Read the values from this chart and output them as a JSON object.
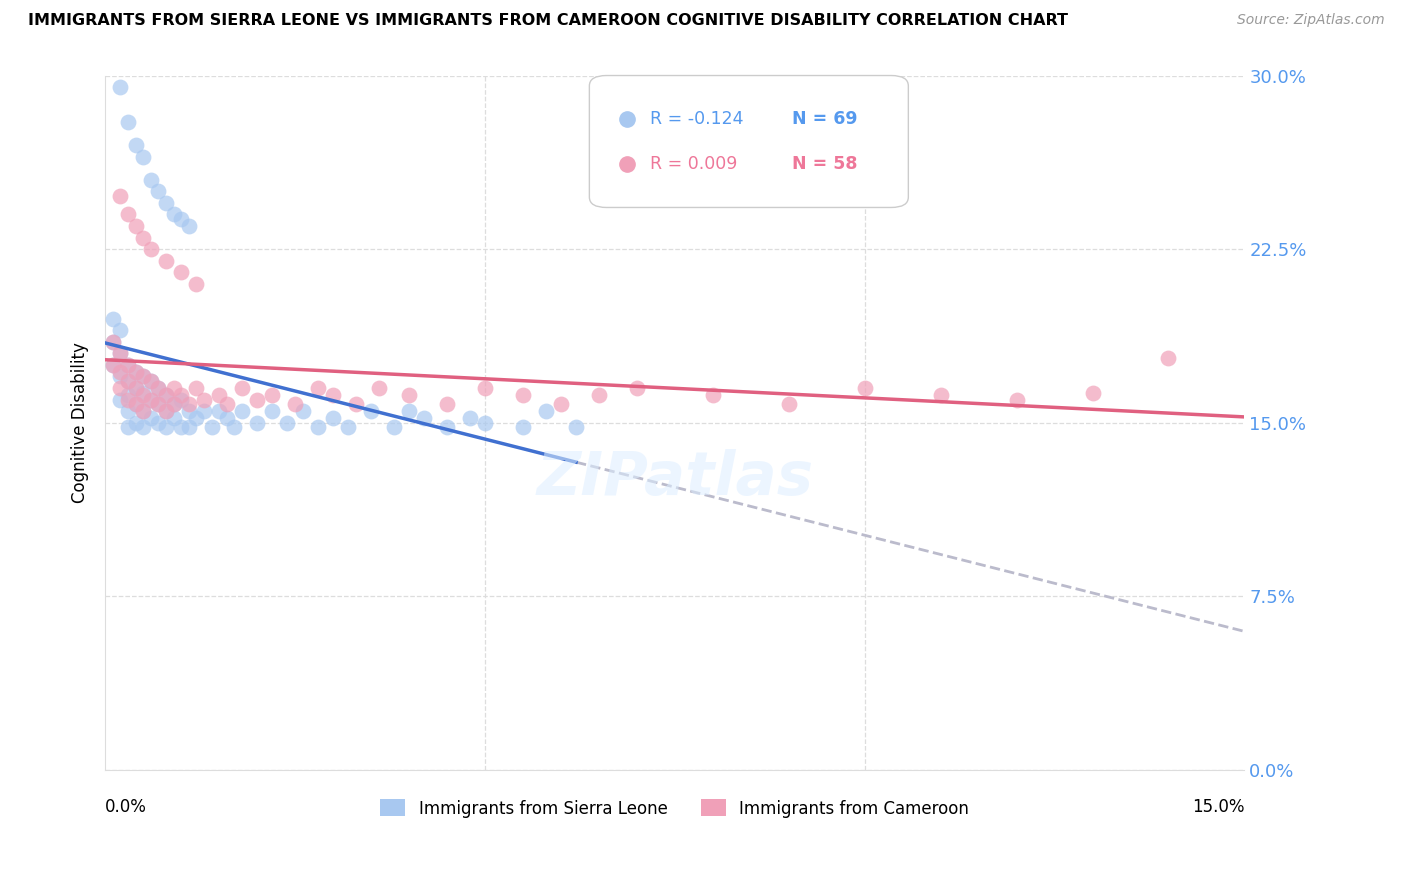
{
  "title": "IMMIGRANTS FROM SIERRA LEONE VS IMMIGRANTS FROM CAMEROON COGNITIVE DISABILITY CORRELATION CHART",
  "source": "Source: ZipAtlas.com",
  "ylabel": "Cognitive Disability",
  "legend_r1": "-0.124",
  "legend_n1": "69",
  "legend_r2": "0.009",
  "legend_n2": "58",
  "legend_label1": "Immigrants from Sierra Leone",
  "legend_label2": "Immigrants from Cameroon",
  "color_blue": "#A8C8F0",
  "color_pink": "#F0A0B8",
  "color_line_blue": "#4070D0",
  "color_line_pink": "#E06080",
  "color_line_dash": "#BBBBCC",
  "x_range": [
    0.0,
    0.15
  ],
  "y_range": [
    0.0,
    0.3
  ],
  "yticks": [
    0.0,
    0.075,
    0.15,
    0.225,
    0.3
  ],
  "ytick_labels": [
    "0.0%",
    "7.5%",
    "15.0%",
    "22.5%",
    "30.0%"
  ],
  "sierra_leone_x": [
    0.001,
    0.001,
    0.001,
    0.002,
    0.002,
    0.002,
    0.002,
    0.003,
    0.003,
    0.003,
    0.003,
    0.003,
    0.004,
    0.004,
    0.004,
    0.004,
    0.005,
    0.005,
    0.005,
    0.005,
    0.006,
    0.006,
    0.006,
    0.007,
    0.007,
    0.007,
    0.008,
    0.008,
    0.008,
    0.009,
    0.009,
    0.01,
    0.01,
    0.011,
    0.011,
    0.012,
    0.013,
    0.014,
    0.015,
    0.016,
    0.017,
    0.018,
    0.02,
    0.022,
    0.024,
    0.026,
    0.028,
    0.03,
    0.032,
    0.035,
    0.038,
    0.04,
    0.042,
    0.045,
    0.048,
    0.05,
    0.055,
    0.058,
    0.062,
    0.002,
    0.003,
    0.004,
    0.005,
    0.006,
    0.007,
    0.008,
    0.009,
    0.01,
    0.011
  ],
  "sierra_leone_y": [
    0.195,
    0.185,
    0.175,
    0.19,
    0.18,
    0.17,
    0.16,
    0.175,
    0.168,
    0.162,
    0.155,
    0.148,
    0.172,
    0.165,
    0.158,
    0.15,
    0.17,
    0.163,
    0.155,
    0.148,
    0.168,
    0.16,
    0.152,
    0.165,
    0.158,
    0.15,
    0.162,
    0.155,
    0.148,
    0.158,
    0.152,
    0.16,
    0.148,
    0.155,
    0.148,
    0.152,
    0.155,
    0.148,
    0.155,
    0.152,
    0.148,
    0.155,
    0.15,
    0.155,
    0.15,
    0.155,
    0.148,
    0.152,
    0.148,
    0.155,
    0.148,
    0.155,
    0.152,
    0.148,
    0.152,
    0.15,
    0.148,
    0.155,
    0.148,
    0.295,
    0.28,
    0.27,
    0.265,
    0.255,
    0.25,
    0.245,
    0.24,
    0.238,
    0.235
  ],
  "cameroon_x": [
    0.001,
    0.001,
    0.002,
    0.002,
    0.002,
    0.003,
    0.003,
    0.003,
    0.004,
    0.004,
    0.004,
    0.005,
    0.005,
    0.005,
    0.006,
    0.006,
    0.007,
    0.007,
    0.008,
    0.008,
    0.009,
    0.009,
    0.01,
    0.011,
    0.012,
    0.013,
    0.015,
    0.016,
    0.018,
    0.02,
    0.022,
    0.025,
    0.028,
    0.03,
    0.033,
    0.036,
    0.04,
    0.045,
    0.05,
    0.055,
    0.06,
    0.065,
    0.07,
    0.08,
    0.09,
    0.1,
    0.11,
    0.12,
    0.13,
    0.14,
    0.002,
    0.003,
    0.004,
    0.005,
    0.006,
    0.008,
    0.01,
    0.012
  ],
  "cameroon_y": [
    0.185,
    0.175,
    0.18,
    0.172,
    0.165,
    0.175,
    0.168,
    0.16,
    0.172,
    0.165,
    0.158,
    0.17,
    0.162,
    0.155,
    0.168,
    0.16,
    0.165,
    0.158,
    0.162,
    0.155,
    0.165,
    0.158,
    0.162,
    0.158,
    0.165,
    0.16,
    0.162,
    0.158,
    0.165,
    0.16,
    0.162,
    0.158,
    0.165,
    0.162,
    0.158,
    0.165,
    0.162,
    0.158,
    0.165,
    0.162,
    0.158,
    0.162,
    0.165,
    0.162,
    0.158,
    0.165,
    0.162,
    0.16,
    0.163,
    0.178,
    0.248,
    0.24,
    0.235,
    0.23,
    0.225,
    0.22,
    0.215,
    0.21
  ]
}
